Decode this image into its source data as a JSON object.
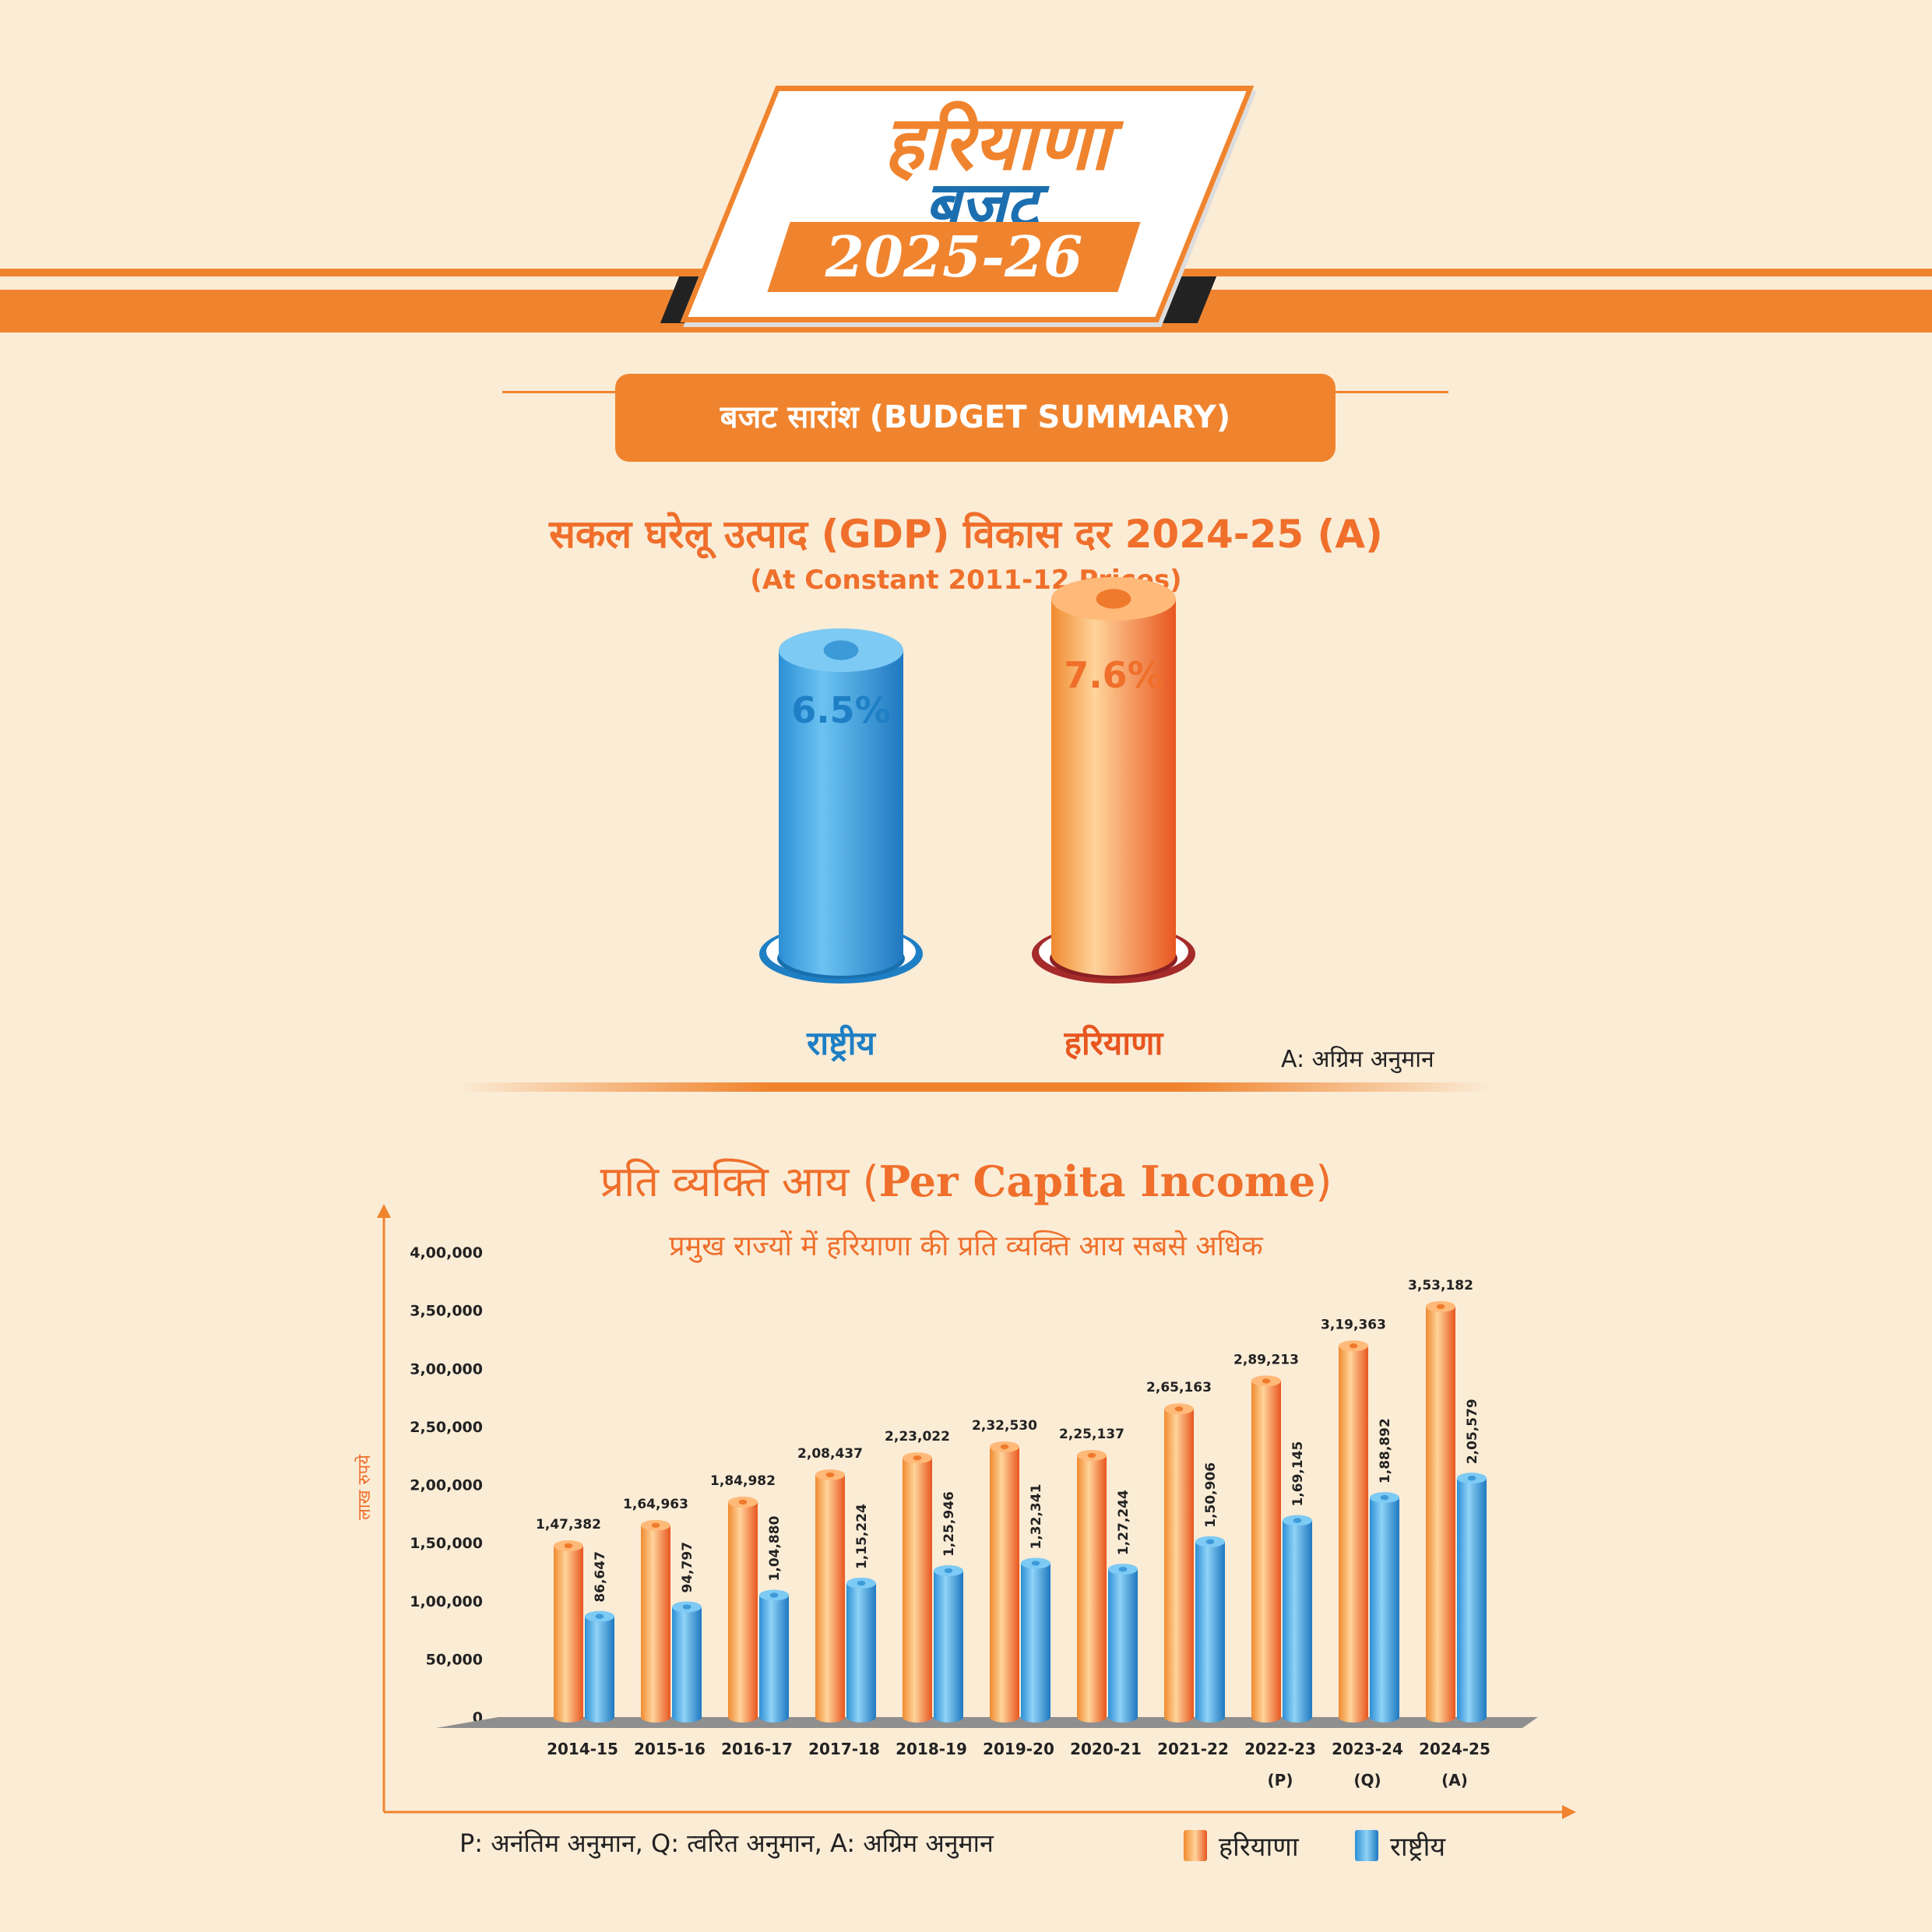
{
  "header": {
    "logo_line1": "हरियाणा",
    "logo_line2": "बजट",
    "logo_year": "2025-26",
    "ribbon": "बजट सारांश (BUDGET SUMMARY)"
  },
  "gdp_section": {
    "title": "सकल घरेलू उत्पाद (GDP) विकास दर 2024-25 (A)",
    "subtitle": "(At Constant 2011-12 Prices)",
    "note": "A: अग्रिम अनुमान"
  },
  "pci_section": {
    "title_hi": "प्रति व्यक्ति आय (",
    "title_en": "Per Capita Income",
    "title_close": ")",
    "subtitle": "प्रमुख राज्यों में हरियाणा की प्रति व्यक्ति आय सबसे अधिक",
    "footnote": "P: अनंतिम अनुमान, Q: त्वरित अनुमान, A: अग्रिम अनुमान",
    "legend_haryana": "हरियाणा",
    "legend_national": "राष्ट्रीय"
  },
  "colors": {
    "orange": "#f0842e",
    "blue": "#3aa3e0",
    "title_orange": "#ef6f2b",
    "value_blue": "#1e7fc4"
  },
  "chart_data": [
    {
      "type": "bar",
      "title": "सकल घरेलू उत्पाद (GDP) विकास दर 2024-25 (A)",
      "categories": [
        "राष्ट्रीय",
        "हरियाणा"
      ],
      "values": [
        6.5,
        7.6
      ],
      "value_labels": [
        "6.5%",
        "7.6%"
      ],
      "unit": "%"
    },
    {
      "type": "bar",
      "title": "प्रति व्यक्ति आय (Per Capita Income)",
      "ylabel": "लाख रुपये",
      "ylim": [
        0,
        400000
      ],
      "yticks": [
        "0",
        "50,000",
        "1,00,000",
        "1,50,000",
        "2,00,000",
        "2,50,000",
        "3,00,000",
        "3,50,000",
        "4,00,000"
      ],
      "categories": [
        "2014-15",
        "2015-16",
        "2016-17",
        "2017-18",
        "2018-19",
        "2019-20",
        "2020-21",
        "2021-22",
        "2022-23",
        "2023-24",
        "2024-25"
      ],
      "category_suffix": [
        "",
        "",
        "",
        "",
        "",
        "",
        "",
        "",
        "(P)",
        "(Q)",
        "(A)"
      ],
      "series": [
        {
          "name": "हरियाणा",
          "values": [
            147382,
            164963,
            184982,
            208437,
            223022,
            232530,
            225137,
            265163,
            289213,
            319363,
            353182
          ],
          "labels": [
            "1,47,382",
            "1,64,963",
            "1,84,982",
            "2,08,437",
            "2,23,022",
            "2,32,530",
            "2,25,137",
            "2,65,163",
            "2,89,213",
            "3,19,363",
            "3,53,182"
          ]
        },
        {
          "name": "राष्ट्रीय",
          "values": [
            86647,
            94797,
            104880,
            115224,
            125946,
            132341,
            127244,
            150906,
            169145,
            188892,
            205579
          ],
          "labels": [
            "86,647",
            "94,797",
            "1,04,880",
            "1,15,224",
            "1,25,946",
            "1,32,341",
            "1,27,244",
            "1,50,906",
            "1,69,145",
            "1,88,892",
            "2,05,579"
          ]
        }
      ],
      "grid": false,
      "legend": "bottom-right"
    }
  ]
}
